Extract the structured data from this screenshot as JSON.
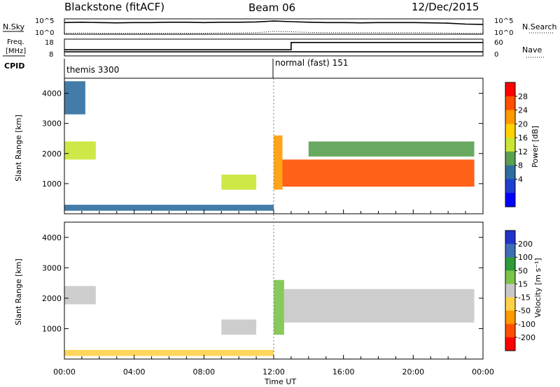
{
  "header": {
    "station": "Blackstone (fitACF)",
    "beam": "Beam 06",
    "date": "12/Dec/2015"
  },
  "noise_panel": {
    "left_label": "N.Sky",
    "right_label": "N.Search",
    "left_ticks": [
      "10^5",
      "10^0"
    ],
    "right_ticks": [
      "10^5",
      "10^0"
    ]
  },
  "freq_panel": {
    "left_label_line1": "Freq.",
    "left_label_line2": "[MHz]",
    "right_label": "Nave",
    "left_ticks": [
      "18",
      "8"
    ],
    "right_ticks": [
      "60",
      "0"
    ]
  },
  "cpid": {
    "label": "CPID",
    "modes": [
      "themis 3300",
      "normal (fast) 151"
    ]
  },
  "x_axis": {
    "label": "Time UT",
    "ticks": [
      "00:00",
      "04:00",
      "08:00",
      "12:00",
      "16:00",
      "20:00",
      "00:00"
    ]
  },
  "power_colorbar": {
    "label": "Power [dB]",
    "ticks": [
      "28",
      "24",
      "20",
      "16",
      "12",
      "8",
      "4"
    ],
    "colors": [
      "#ff0000",
      "#ff5000",
      "#ff9a00",
      "#ffd200",
      "#c8e633",
      "#5aa050",
      "#2f6e9e",
      "#1f3fd0",
      "#0000ff"
    ]
  },
  "velocity_colorbar": {
    "label": "Velocity [m s⁻¹]",
    "ticks": [
      "200",
      "100",
      "50",
      "15",
      "-15",
      "-50",
      "-100",
      "-200"
    ],
    "colors": [
      "#2233cc",
      "#3f6eb5",
      "#2f9a3a",
      "#7cc34a",
      "#c8c8c8",
      "#ffd24a",
      "#ff9a00",
      "#ff5000",
      "#ff0000"
    ]
  },
  "chart_data": [
    {
      "type": "line",
      "title": "N.Sky / N.Search",
      "x": [
        0,
        1,
        2,
        3,
        4,
        5,
        6,
        7,
        8,
        9,
        10,
        11,
        12,
        13,
        14,
        15,
        16,
        17,
        18,
        19,
        20,
        21,
        22,
        23,
        24
      ],
      "series": [
        {
          "name": "N.Sky",
          "values": [
            3.8,
            3.9,
            3.8,
            3.7,
            3.8,
            3.8,
            3.9,
            3.9,
            3.8,
            3.9,
            3.9,
            4.0,
            4.3,
            4.1,
            3.9,
            3.8,
            3.8,
            3.7,
            3.8,
            3.8,
            3.8,
            3.7,
            3.6,
            3.3,
            3.2
          ]
        },
        {
          "name": "N.Search",
          "values": [
            0.3,
            0.4,
            0.3,
            0.3,
            0.3,
            0.3,
            0.3,
            0.3,
            0.3,
            0.4,
            0.4,
            0.5,
            0.9,
            0.8,
            0.6,
            0.5,
            0.5,
            0.5,
            0.5,
            0.5,
            0.5,
            0.5,
            0.4,
            0.3,
            0.3
          ]
        }
      ],
      "ylim": [
        0,
        5
      ]
    },
    {
      "type": "line",
      "title": "Freq. / Nave",
      "x": [
        0,
        13,
        13,
        24
      ],
      "series": [
        {
          "name": "Freq.",
          "values": [
            10.4,
            10.4,
            10.4,
            10.4
          ]
        },
        {
          "name": "Nave",
          "values": [
            22,
            22,
            48,
            48
          ]
        }
      ],
      "ylim_freq": [
        8,
        18
      ],
      "ylim_nave": [
        0,
        60
      ]
    },
    {
      "type": "heatmap",
      "title": "Power",
      "ylabel": "Slant Range [km]",
      "xlabel": "Time UT",
      "xlim": [
        0,
        24
      ],
      "ylim": [
        0,
        4500
      ],
      "yticks": [
        1000,
        2000,
        3000,
        4000
      ],
      "colorbar_label": "Power [dB]",
      "regions": [
        {
          "t0": 0.0,
          "t1": 1.8,
          "r0": 1800,
          "r1": 2400,
          "level": 12
        },
        {
          "t0": 0.0,
          "t1": 1.2,
          "r0": 3300,
          "r1": 4400,
          "level": 6
        },
        {
          "t0": 0.0,
          "t1": 12.0,
          "r0": 100,
          "r1": 300,
          "level": 6
        },
        {
          "t0": 9.0,
          "t1": 11.0,
          "r0": 800,
          "r1": 1300,
          "level": 11
        },
        {
          "t0": 12.0,
          "t1": 12.5,
          "r0": 800,
          "r1": 2600,
          "level": 20
        },
        {
          "t0": 12.5,
          "t1": 23.5,
          "r0": 900,
          "r1": 1800,
          "level": 25
        },
        {
          "t0": 14.0,
          "t1": 23.5,
          "r0": 1900,
          "r1": 2400,
          "level": 7
        }
      ]
    },
    {
      "type": "heatmap",
      "title": "Velocity",
      "ylabel": "Slant Range [km]",
      "xlabel": "Time UT",
      "xlim": [
        0,
        24
      ],
      "ylim": [
        0,
        4500
      ],
      "yticks": [
        1000,
        2000,
        3000,
        4000
      ],
      "colorbar_label": "Velocity [m s⁻¹]",
      "regions": [
        {
          "t0": 0.0,
          "t1": 1.8,
          "r0": 1800,
          "r1": 2400,
          "level": 0
        },
        {
          "t0": 0.0,
          "t1": 12.0,
          "r0": 100,
          "r1": 300,
          "level": -30
        },
        {
          "t0": 9.0,
          "t1": 11.0,
          "r0": 800,
          "r1": 1300,
          "level": 10
        },
        {
          "t0": 12.0,
          "t1": 12.6,
          "r0": 800,
          "r1": 2600,
          "level": 30
        },
        {
          "t0": 12.6,
          "t1": 23.5,
          "r0": 1200,
          "r1": 2300,
          "level": 0
        }
      ]
    }
  ]
}
